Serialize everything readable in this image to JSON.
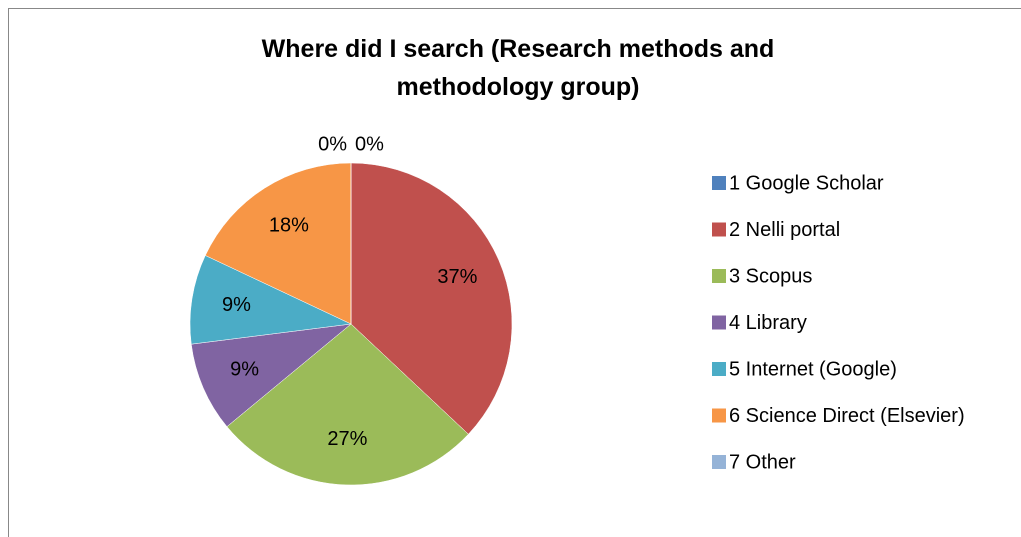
{
  "chart_data": {
    "type": "pie",
    "title": "Where did I search (Research methods and methodology group)",
    "categories": [
      "1 Google Scholar",
      "2 Nelli portal",
      "3 Scopus",
      "4 Library",
      "5 Internet (Google)",
      "6 Science Direct (Elsevier)",
      "7 Other"
    ],
    "values": [
      0,
      37,
      27,
      9,
      9,
      18,
      0
    ],
    "value_labels": [
      "0%",
      "37%",
      "27%",
      "9%",
      "9%",
      "18%",
      "0%"
    ],
    "colors": [
      "#4F81BD",
      "#C0504D",
      "#9BBB59",
      "#8064A2",
      "#4BACC6",
      "#F79646",
      "#95B3D7"
    ],
    "legend": "right"
  }
}
